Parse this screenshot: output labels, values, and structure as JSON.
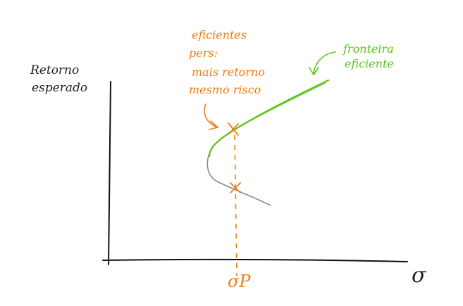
{
  "axes": {
    "y_label_line1": "Retorno",
    "y_label_line2": "esperado",
    "x_label": "σ",
    "sigma_p_label": "σP"
  },
  "annotations": {
    "efficient_portfolios": [
      "eficientes",
      "pers:",
      "mais retorno",
      "mesmo risco"
    ],
    "frontier": [
      "fronteira",
      "eficiente"
    ]
  },
  "colors": {
    "axis": "#111111",
    "frontier": "#5cc21e",
    "inefficient_curve": "#8a8a8a",
    "annotation": "#f07d12"
  }
}
